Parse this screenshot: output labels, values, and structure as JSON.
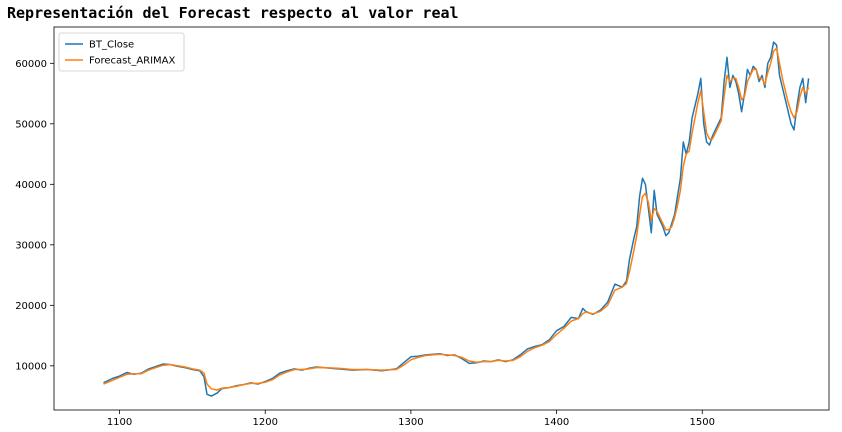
{
  "chart_data": {
    "type": "line",
    "title": "Representación del Forecast respecto al valor real",
    "xlabel": "",
    "ylabel": "",
    "xlim": [
      1055,
      1587
    ],
    "ylim": [
      2700,
      66000
    ],
    "x_ticks": [
      1100,
      1200,
      1300,
      1400,
      1500
    ],
    "y_ticks": [
      10000,
      20000,
      30000,
      40000,
      50000,
      60000
    ],
    "grid": false,
    "legend_position": "top-left",
    "series": [
      {
        "name": "BT_Close",
        "color": "#1f77b4",
        "points": [
          [
            1089,
            7200
          ],
          [
            1095,
            7900
          ],
          [
            1100,
            8300
          ],
          [
            1105,
            8900
          ],
          [
            1110,
            8600
          ],
          [
            1115,
            8800
          ],
          [
            1120,
            9500
          ],
          [
            1125,
            9900
          ],
          [
            1130,
            10300
          ],
          [
            1135,
            10200
          ],
          [
            1140,
            9900
          ],
          [
            1145,
            9700
          ],
          [
            1150,
            9400
          ],
          [
            1155,
            9200
          ],
          [
            1158,
            8200
          ],
          [
            1160,
            5300
          ],
          [
            1163,
            5000
          ],
          [
            1167,
            5500
          ],
          [
            1170,
            6200
          ],
          [
            1175,
            6400
          ],
          [
            1180,
            6700
          ],
          [
            1185,
            6900
          ],
          [
            1190,
            7200
          ],
          [
            1195,
            7000
          ],
          [
            1200,
            7400
          ],
          [
            1205,
            7900
          ],
          [
            1210,
            8800
          ],
          [
            1215,
            9200
          ],
          [
            1220,
            9500
          ],
          [
            1225,
            9300
          ],
          [
            1230,
            9600
          ],
          [
            1235,
            9800
          ],
          [
            1240,
            9700
          ],
          [
            1250,
            9500
          ],
          [
            1260,
            9300
          ],
          [
            1270,
            9400
          ],
          [
            1280,
            9200
          ],
          [
            1290,
            9500
          ],
          [
            1295,
            10500
          ],
          [
            1300,
            11500
          ],
          [
            1305,
            11600
          ],
          [
            1310,
            11800
          ],
          [
            1320,
            12000
          ],
          [
            1325,
            11700
          ],
          [
            1330,
            11800
          ],
          [
            1335,
            11200
          ],
          [
            1340,
            10400
          ],
          [
            1345,
            10500
          ],
          [
            1350,
            10800
          ],
          [
            1355,
            10700
          ],
          [
            1360,
            11000
          ],
          [
            1365,
            10700
          ],
          [
            1370,
            11000
          ],
          [
            1375,
            11800
          ],
          [
            1380,
            12800
          ],
          [
            1385,
            13200
          ],
          [
            1390,
            13500
          ],
          [
            1395,
            14300
          ],
          [
            1400,
            15800
          ],
          [
            1405,
            16500
          ],
          [
            1410,
            18000
          ],
          [
            1415,
            17800
          ],
          [
            1418,
            19500
          ],
          [
            1420,
            19000
          ],
          [
            1425,
            18500
          ],
          [
            1430,
            19200
          ],
          [
            1435,
            20500
          ],
          [
            1440,
            23500
          ],
          [
            1445,
            23000
          ],
          [
            1448,
            24000
          ],
          [
            1450,
            27500
          ],
          [
            1453,
            31000
          ],
          [
            1455,
            33000
          ],
          [
            1457,
            38000
          ],
          [
            1459,
            41000
          ],
          [
            1461,
            40000
          ],
          [
            1463,
            36000
          ],
          [
            1465,
            32000
          ],
          [
            1467,
            39000
          ],
          [
            1469,
            35000
          ],
          [
            1471,
            34000
          ],
          [
            1473,
            33000
          ],
          [
            1475,
            31500
          ],
          [
            1477,
            32000
          ],
          [
            1479,
            33500
          ],
          [
            1481,
            35000
          ],
          [
            1483,
            38000
          ],
          [
            1485,
            41000
          ],
          [
            1487,
            47000
          ],
          [
            1489,
            45000
          ],
          [
            1491,
            47000
          ],
          [
            1493,
            51000
          ],
          [
            1495,
            53000
          ],
          [
            1497,
            55000
          ],
          [
            1499,
            57500
          ],
          [
            1501,
            50000
          ],
          [
            1503,
            47000
          ],
          [
            1505,
            46500
          ],
          [
            1507,
            48000
          ],
          [
            1509,
            49000
          ],
          [
            1511,
            50000
          ],
          [
            1513,
            51000
          ],
          [
            1515,
            57000
          ],
          [
            1517,
            61000
          ],
          [
            1519,
            56000
          ],
          [
            1521,
            58000
          ],
          [
            1523,
            57000
          ],
          [
            1525,
            55000
          ],
          [
            1527,
            52000
          ],
          [
            1529,
            55000
          ],
          [
            1531,
            59000
          ],
          [
            1533,
            58000
          ],
          [
            1535,
            59500
          ],
          [
            1537,
            59000
          ],
          [
            1539,
            57000
          ],
          [
            1541,
            58000
          ],
          [
            1543,
            56000
          ],
          [
            1545,
            60000
          ],
          [
            1547,
            61000
          ],
          [
            1549,
            63500
          ],
          [
            1551,
            63000
          ],
          [
            1553,
            58000
          ],
          [
            1555,
            56000
          ],
          [
            1557,
            54000
          ],
          [
            1559,
            52000
          ],
          [
            1561,
            50000
          ],
          [
            1563,
            49000
          ],
          [
            1565,
            53000
          ],
          [
            1567,
            56000
          ],
          [
            1569,
            57500
          ],
          [
            1571,
            53500
          ],
          [
            1573,
            57500
          ]
        ]
      },
      {
        "name": "Forecast_ARIMAX",
        "color": "#ff7f0e",
        "points": [
          [
            1089,
            7000
          ],
          [
            1095,
            7600
          ],
          [
            1100,
            8100
          ],
          [
            1105,
            8600
          ],
          [
            1110,
            8700
          ],
          [
            1115,
            8700
          ],
          [
            1120,
            9300
          ],
          [
            1125,
            9700
          ],
          [
            1130,
            10100
          ],
          [
            1135,
            10200
          ],
          [
            1140,
            10000
          ],
          [
            1145,
            9800
          ],
          [
            1150,
            9500
          ],
          [
            1155,
            9300
          ],
          [
            1158,
            8800
          ],
          [
            1160,
            7000
          ],
          [
            1163,
            6200
          ],
          [
            1167,
            6000
          ],
          [
            1170,
            6300
          ],
          [
            1175,
            6400
          ],
          [
            1180,
            6600
          ],
          [
            1185,
            6900
          ],
          [
            1190,
            7100
          ],
          [
            1195,
            7100
          ],
          [
            1200,
            7300
          ],
          [
            1205,
            7700
          ],
          [
            1210,
            8500
          ],
          [
            1215,
            9000
          ],
          [
            1220,
            9400
          ],
          [
            1225,
            9400
          ],
          [
            1230,
            9500
          ],
          [
            1235,
            9700
          ],
          [
            1240,
            9700
          ],
          [
            1250,
            9600
          ],
          [
            1260,
            9400
          ],
          [
            1270,
            9400
          ],
          [
            1280,
            9300
          ],
          [
            1290,
            9400
          ],
          [
            1295,
            10100
          ],
          [
            1300,
            11000
          ],
          [
            1305,
            11400
          ],
          [
            1310,
            11700
          ],
          [
            1320,
            11900
          ],
          [
            1325,
            11800
          ],
          [
            1330,
            11700
          ],
          [
            1335,
            11400
          ],
          [
            1340,
            10800
          ],
          [
            1345,
            10600
          ],
          [
            1350,
            10700
          ],
          [
            1355,
            10700
          ],
          [
            1360,
            10900
          ],
          [
            1365,
            10800
          ],
          [
            1370,
            10900
          ],
          [
            1375,
            11500
          ],
          [
            1380,
            12400
          ],
          [
            1385,
            13000
          ],
          [
            1390,
            13400
          ],
          [
            1395,
            14000
          ],
          [
            1400,
            15200
          ],
          [
            1405,
            16200
          ],
          [
            1410,
            17400
          ],
          [
            1415,
            17800
          ],
          [
            1418,
            18600
          ],
          [
            1420,
            18900
          ],
          [
            1425,
            18600
          ],
          [
            1430,
            19000
          ],
          [
            1435,
            20000
          ],
          [
            1440,
            22500
          ],
          [
            1445,
            23000
          ],
          [
            1448,
            23600
          ],
          [
            1450,
            25500
          ],
          [
            1453,
            29000
          ],
          [
            1455,
            31500
          ],
          [
            1457,
            35000
          ],
          [
            1459,
            38000
          ],
          [
            1461,
            38500
          ],
          [
            1463,
            37000
          ],
          [
            1465,
            34000
          ],
          [
            1467,
            36000
          ],
          [
            1469,
            35500
          ],
          [
            1471,
            34500
          ],
          [
            1473,
            33500
          ],
          [
            1475,
            32500
          ],
          [
            1477,
            32500
          ],
          [
            1479,
            33000
          ],
          [
            1481,
            34500
          ],
          [
            1483,
            36500
          ],
          [
            1485,
            39000
          ],
          [
            1487,
            43000
          ],
          [
            1489,
            45000
          ],
          [
            1491,
            45500
          ],
          [
            1493,
            48500
          ],
          [
            1495,
            51000
          ],
          [
            1497,
            53500
          ],
          [
            1499,
            55500
          ],
          [
            1501,
            52000
          ],
          [
            1503,
            48500
          ],
          [
            1505,
            47500
          ],
          [
            1507,
            47500
          ],
          [
            1509,
            48500
          ],
          [
            1511,
            49500
          ],
          [
            1513,
            50500
          ],
          [
            1515,
            54500
          ],
          [
            1517,
            58000
          ],
          [
            1519,
            57000
          ],
          [
            1521,
            57500
          ],
          [
            1523,
            57500
          ],
          [
            1525,
            56000
          ],
          [
            1527,
            54000
          ],
          [
            1529,
            54500
          ],
          [
            1531,
            57000
          ],
          [
            1533,
            58000
          ],
          [
            1535,
            59000
          ],
          [
            1537,
            59000
          ],
          [
            1539,
            57500
          ],
          [
            1541,
            57500
          ],
          [
            1543,
            56500
          ],
          [
            1545,
            58500
          ],
          [
            1547,
            60000
          ],
          [
            1549,
            62000
          ],
          [
            1551,
            62500
          ],
          [
            1553,
            60000
          ],
          [
            1555,
            57500
          ],
          [
            1557,
            55500
          ],
          [
            1559,
            53500
          ],
          [
            1561,
            52000
          ],
          [
            1563,
            51000
          ],
          [
            1565,
            52000
          ],
          [
            1567,
            54500
          ],
          [
            1569,
            56000
          ],
          [
            1571,
            55000
          ],
          [
            1573,
            56000
          ]
        ]
      }
    ]
  }
}
